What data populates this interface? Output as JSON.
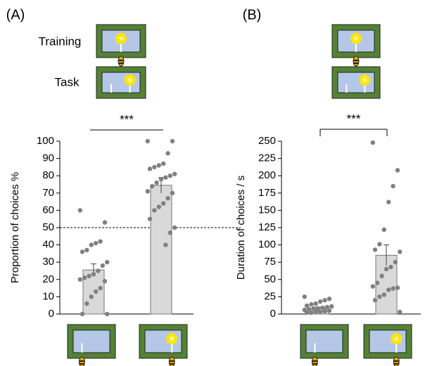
{
  "chart_data": [
    {
      "type": "bar",
      "panel_label": "(A)",
      "row_labels": [
        "Training",
        "Task"
      ],
      "significance": "***",
      "ylabel": "Proportion of choices  %",
      "categories": [
        null,
        null
      ],
      "values": [
        25.5,
        74.5
      ],
      "errors": [
        3.5,
        4.5
      ],
      "color": "#d9d9d9",
      "point_color": "#808080",
      "points": [
        [
          60,
          53,
          42,
          41,
          40,
          37,
          36,
          30,
          28,
          25,
          23,
          22,
          21,
          20,
          19,
          15,
          13,
          10,
          6,
          0,
          0
        ],
        [
          100,
          100,
          93,
          87,
          86,
          85,
          84,
          81,
          80,
          79,
          78,
          76,
          74,
          71,
          70,
          67,
          64,
          62,
          60,
          55,
          50,
          47,
          40
        ]
      ],
      "reference_line": 50,
      "ylim": [
        0,
        100
      ],
      "yticks": [
        0,
        10,
        20,
        30,
        40,
        50,
        60,
        70,
        80,
        90,
        100
      ]
    },
    {
      "type": "bar",
      "panel_label": "(B)",
      "significance": "***",
      "ylabel": "Duration of choices / s",
      "categories": [
        null,
        null
      ],
      "values": [
        8,
        85
      ],
      "errors": [
        2,
        15
      ],
      "color": "#d9d9d9",
      "point_color": "#808080",
      "points": [
        [
          25,
          22,
          20,
          18,
          15,
          14,
          12,
          11,
          10,
          9,
          8,
          8,
          7,
          6,
          5,
          4,
          3,
          3,
          2,
          2
        ],
        [
          248,
          208,
          185,
          162,
          122,
          101,
          93,
          90,
          75,
          68,
          65,
          55,
          45,
          40,
          38,
          37,
          35,
          28,
          25,
          20,
          3
        ]
      ],
      "ylim": [
        0,
        250
      ],
      "yticks": [
        0,
        25,
        50,
        75,
        100,
        125,
        150,
        175,
        200,
        225,
        250
      ]
    }
  ]
}
